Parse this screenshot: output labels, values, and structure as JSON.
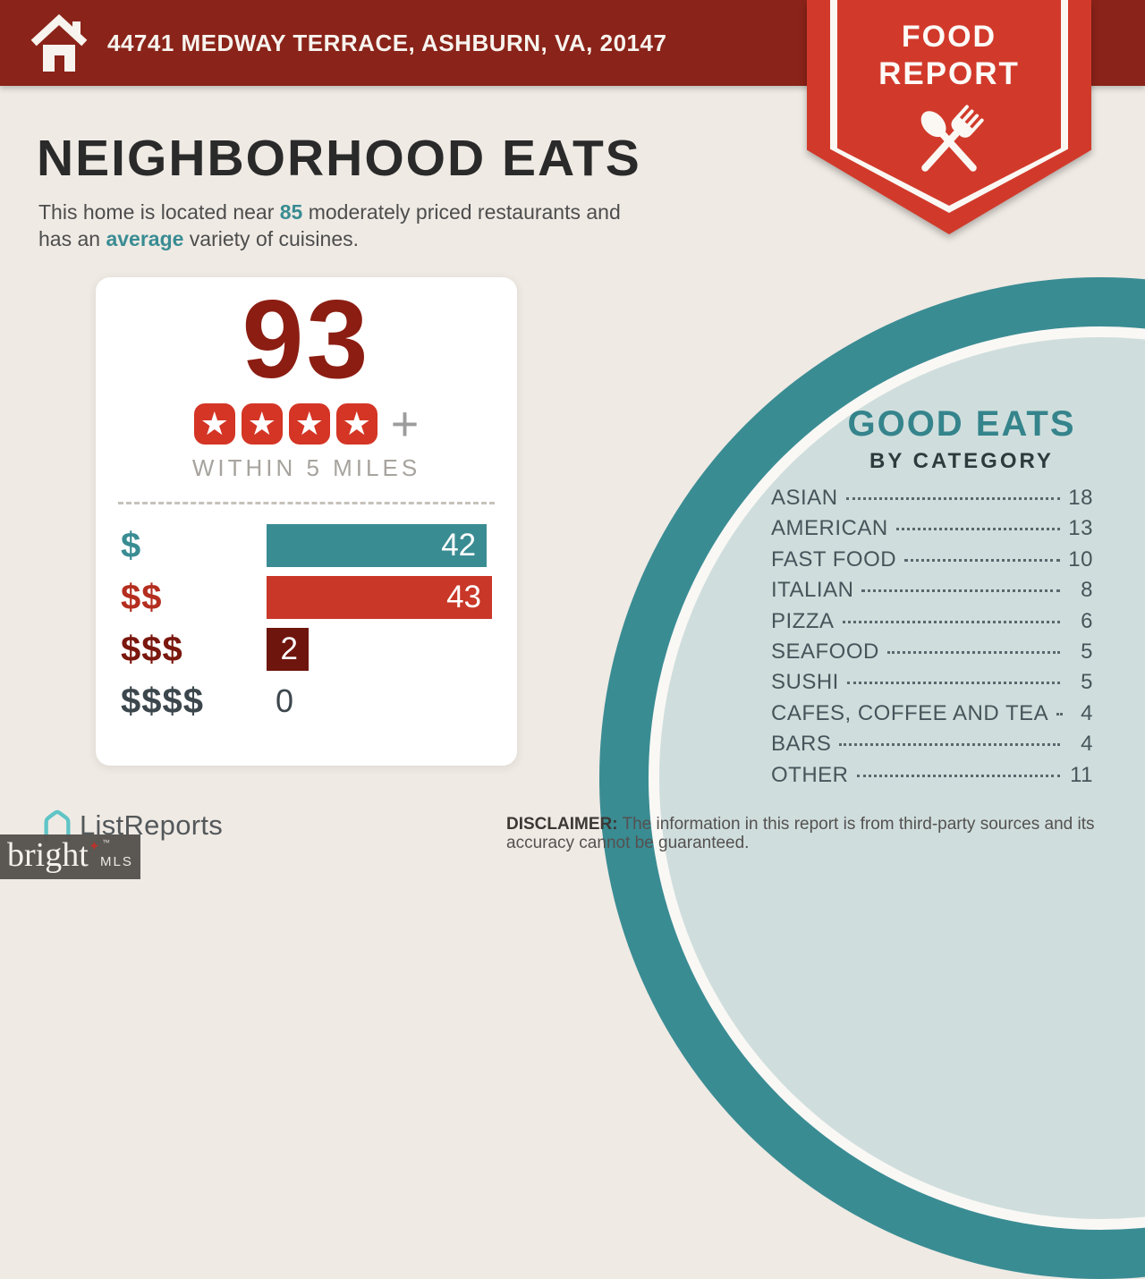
{
  "header": {
    "address": "44741 MEDWAY TERRACE, ASHBURN, VA, 20147"
  },
  "ribbon": {
    "line1": "FOOD",
    "line2": "REPORT"
  },
  "intro": {
    "title": "NEIGHBORHOOD EATS",
    "line1_pre": "This home is located near ",
    "restaurant_count": "85",
    "line1_post": " moderately priced restaurants and",
    "line2_pre": "has an ",
    "variety_word": "average",
    "line2_post": " variety of cuisines."
  },
  "score_card": {
    "score": "93",
    "stars": 4,
    "plus_label": "+",
    "caption": "WITHIN 5 MILES"
  },
  "chart_data": [
    {
      "type": "bar",
      "orientation": "horizontal",
      "title": "93",
      "subtitle": "WITHIN 5 MILES",
      "rating_stars": 4,
      "categories": [
        "$",
        "$$",
        "$$$",
        "$$$$"
      ],
      "values": [
        42,
        43,
        2,
        0
      ],
      "xlim": [
        0,
        43
      ],
      "bar_colors": [
        "#3A8C93",
        "#C93729",
        "#6E150D",
        null
      ],
      "label_colors": [
        "#3A8C93",
        "#B42E20",
        "#7A170E",
        "#3C474D"
      ],
      "grid": false,
      "legend": false
    },
    {
      "type": "table",
      "title": "GOOD EATS",
      "subtitle": "BY CATEGORY",
      "categories": [
        "ASIAN",
        "AMERICAN",
        "FAST FOOD",
        "ITALIAN",
        "PIZZA",
        "SEAFOOD",
        "SUSHI",
        "CAFES, COFFEE AND TEA",
        "BARS",
        "OTHER"
      ],
      "values": [
        18,
        13,
        10,
        8,
        6,
        5,
        5,
        4,
        4,
        11
      ]
    }
  ],
  "good_eats": {
    "title": "GOOD EATS",
    "subtitle": "BY CATEGORY"
  },
  "footer": {
    "logo_text": "ListReports",
    "disclaimer_label": "DISCLAIMER:",
    "disclaimer_text": " The information in this report is from third-party sources and its accuracy cannot be guaranteed."
  },
  "watermark": {
    "brand": "bright",
    "star": "✦",
    "tm": "™",
    "suffix": "MLS"
  },
  "colors": {
    "header_red": "#8A2319",
    "ribbon_red": "#D13A2B",
    "star_badge_red": "#D43525",
    "score_red": "#8C1D12",
    "teal": "#3A8C93",
    "bar_red": "#C93729",
    "bar_maroon": "#6E150D",
    "background_cream": "#EFEAE4",
    "circle_interior": "#CFDEDD",
    "logo_teal": "#5FC4C6"
  }
}
